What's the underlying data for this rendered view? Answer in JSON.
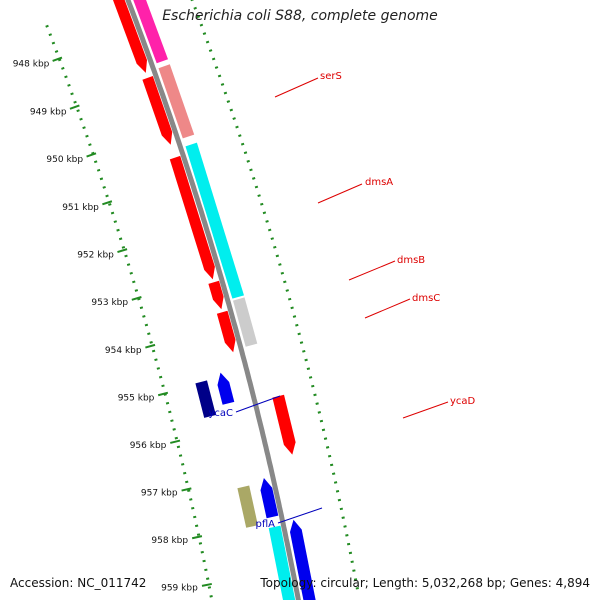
{
  "title": "Escherichia coli S88, complete genome",
  "footer": {
    "accession": "Accession: NC_011742",
    "summary": "Topology: circular; Length: 5,032,268 bp; Genes: 4,894"
  },
  "ticks": [
    {
      "label": "948 kbp"
    },
    {
      "label": "949 kbp"
    },
    {
      "label": "950 kbp"
    },
    {
      "label": "951 kbp"
    },
    {
      "label": "952 kbp"
    },
    {
      "label": "953 kbp"
    },
    {
      "label": "954 kbp"
    },
    {
      "label": "955 kbp"
    },
    {
      "label": "956 kbp"
    },
    {
      "label": "957 kbp"
    },
    {
      "label": "958 kbp"
    },
    {
      "label": "959 kbp"
    }
  ],
  "genes": [
    {
      "label": "serS",
      "color": "#dd0000"
    },
    {
      "label": "dmsA",
      "color": "#dd0000"
    },
    {
      "label": "dmsB",
      "color": "#dd0000"
    },
    {
      "label": "dmsC",
      "color": "#dd0000"
    },
    {
      "label": "ycaD",
      "color": "#dd0000"
    },
    {
      "label": "ycaC",
      "color": "#0000bb"
    },
    {
      "label": "pflA",
      "color": "#0000bb"
    }
  ],
  "colors": {
    "backbone": "#888888",
    "tick": "#228b22",
    "forward_cds": "#ff0000",
    "reverse_cds": "#0000ee",
    "gene": "#00eeee",
    "rna": "#ff22aa",
    "pseudo": "#ee8888",
    "other": "#cccccc",
    "dark_blue": "#000088",
    "olive": "#aaa866"
  }
}
